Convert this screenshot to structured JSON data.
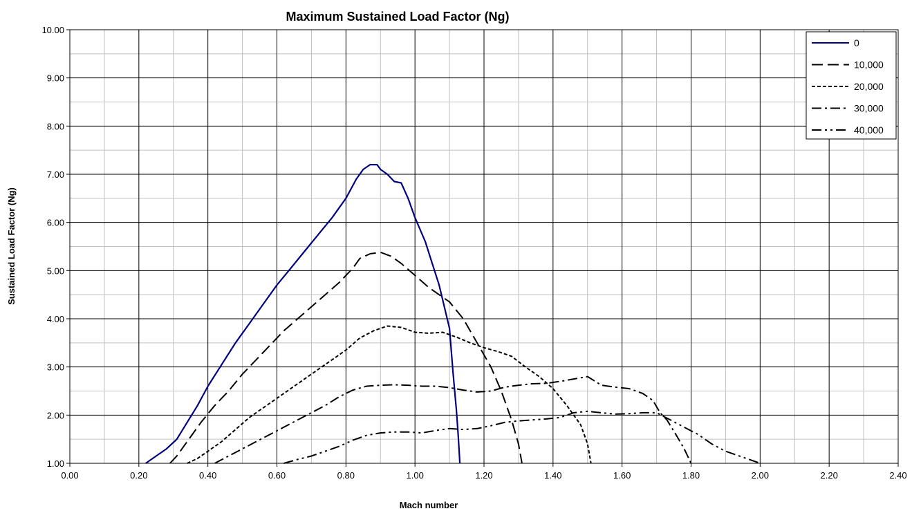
{
  "chart_data": {
    "type": "line",
    "title": "Maximum Sustained Load Factor (Ng)",
    "xlabel": "Mach number",
    "ylabel": "Sustained Load Factor (Ng)",
    "xlim": [
      0,
      2.4
    ],
    "ylim": [
      1,
      10
    ],
    "grid": true,
    "legend_position": "top-right",
    "x_ticks": [
      "0.00",
      "0.20",
      "0.40",
      "0.60",
      "0.80",
      "1.00",
      "1.20",
      "1.40",
      "1.60",
      "1.80",
      "2.00",
      "2.20",
      "2.40"
    ],
    "y_ticks": [
      "1.00",
      "2.00",
      "3.00",
      "4.00",
      "5.00",
      "6.00",
      "7.00",
      "8.00",
      "9.00",
      "10.00"
    ],
    "series": [
      {
        "name": "0",
        "color": "#000080",
        "dash": "solid",
        "points": [
          [
            0.22,
            1.0
          ],
          [
            0.25,
            1.15
          ],
          [
            0.28,
            1.3
          ],
          [
            0.31,
            1.5
          ],
          [
            0.34,
            1.85
          ],
          [
            0.37,
            2.2
          ],
          [
            0.4,
            2.6
          ],
          [
            0.44,
            3.05
          ],
          [
            0.48,
            3.5
          ],
          [
            0.52,
            3.9
          ],
          [
            0.56,
            4.3
          ],
          [
            0.6,
            4.7
          ],
          [
            0.64,
            5.05
          ],
          [
            0.68,
            5.4
          ],
          [
            0.72,
            5.75
          ],
          [
            0.76,
            6.1
          ],
          [
            0.8,
            6.5
          ],
          [
            0.83,
            6.9
          ],
          [
            0.85,
            7.1
          ],
          [
            0.87,
            7.2
          ],
          [
            0.89,
            7.2
          ],
          [
            0.9,
            7.1
          ],
          [
            0.92,
            7.0
          ],
          [
            0.94,
            6.85
          ],
          [
            0.96,
            6.82
          ],
          [
            0.98,
            6.5
          ],
          [
            1.0,
            6.1
          ],
          [
            1.03,
            5.6
          ],
          [
            1.05,
            5.15
          ],
          [
            1.07,
            4.7
          ],
          [
            1.09,
            4.1
          ],
          [
            1.1,
            3.8
          ],
          [
            1.11,
            2.9
          ],
          [
            1.12,
            2.1
          ],
          [
            1.125,
            1.6
          ],
          [
            1.13,
            1.0
          ]
        ]
      },
      {
        "name": "10,000",
        "color": "#000000",
        "dash": "long-dash",
        "points": [
          [
            0.29,
            1.0
          ],
          [
            0.31,
            1.15
          ],
          [
            0.34,
            1.45
          ],
          [
            0.38,
            1.85
          ],
          [
            0.42,
            2.2
          ],
          [
            0.46,
            2.5
          ],
          [
            0.5,
            2.85
          ],
          [
            0.54,
            3.15
          ],
          [
            0.58,
            3.45
          ],
          [
            0.62,
            3.75
          ],
          [
            0.66,
            4.0
          ],
          [
            0.7,
            4.25
          ],
          [
            0.74,
            4.5
          ],
          [
            0.78,
            4.75
          ],
          [
            0.82,
            5.05
          ],
          [
            0.84,
            5.25
          ],
          [
            0.87,
            5.35
          ],
          [
            0.9,
            5.38
          ],
          [
            0.93,
            5.3
          ],
          [
            0.96,
            5.15
          ],
          [
            1.0,
            4.9
          ],
          [
            1.04,
            4.65
          ],
          [
            1.06,
            4.55
          ],
          [
            1.1,
            4.35
          ],
          [
            1.14,
            4.0
          ],
          [
            1.18,
            3.5
          ],
          [
            1.22,
            3.0
          ],
          [
            1.25,
            2.5
          ],
          [
            1.28,
            1.9
          ],
          [
            1.3,
            1.4
          ],
          [
            1.31,
            1.0
          ]
        ]
      },
      {
        "name": "20,000",
        "color": "#000000",
        "dash": "short-dash",
        "points": [
          [
            0.34,
            1.0
          ],
          [
            0.37,
            1.1
          ],
          [
            0.4,
            1.25
          ],
          [
            0.44,
            1.45
          ],
          [
            0.48,
            1.7
          ],
          [
            0.52,
            1.95
          ],
          [
            0.56,
            2.15
          ],
          [
            0.6,
            2.35
          ],
          [
            0.64,
            2.55
          ],
          [
            0.68,
            2.75
          ],
          [
            0.72,
            2.95
          ],
          [
            0.76,
            3.15
          ],
          [
            0.8,
            3.35
          ],
          [
            0.84,
            3.6
          ],
          [
            0.88,
            3.75
          ],
          [
            0.92,
            3.85
          ],
          [
            0.96,
            3.82
          ],
          [
            1.0,
            3.72
          ],
          [
            1.04,
            3.7
          ],
          [
            1.08,
            3.72
          ],
          [
            1.12,
            3.62
          ],
          [
            1.16,
            3.5
          ],
          [
            1.2,
            3.4
          ],
          [
            1.24,
            3.32
          ],
          [
            1.28,
            3.22
          ],
          [
            1.32,
            3.0
          ],
          [
            1.36,
            2.8
          ],
          [
            1.4,
            2.55
          ],
          [
            1.44,
            2.2
          ],
          [
            1.48,
            1.8
          ],
          [
            1.5,
            1.4
          ],
          [
            1.51,
            1.0
          ]
        ]
      },
      {
        "name": "30,000",
        "color": "#000000",
        "dash": "dash-dot",
        "points": [
          [
            0.42,
            1.0
          ],
          [
            0.46,
            1.15
          ],
          [
            0.5,
            1.3
          ],
          [
            0.54,
            1.45
          ],
          [
            0.58,
            1.6
          ],
          [
            0.62,
            1.75
          ],
          [
            0.66,
            1.9
          ],
          [
            0.7,
            2.05
          ],
          [
            0.74,
            2.2
          ],
          [
            0.78,
            2.38
          ],
          [
            0.82,
            2.52
          ],
          [
            0.86,
            2.6
          ],
          [
            0.9,
            2.62
          ],
          [
            0.94,
            2.63
          ],
          [
            0.98,
            2.62
          ],
          [
            1.02,
            2.6
          ],
          [
            1.06,
            2.6
          ],
          [
            1.1,
            2.57
          ],
          [
            1.14,
            2.52
          ],
          [
            1.18,
            2.48
          ],
          [
            1.22,
            2.5
          ],
          [
            1.26,
            2.58
          ],
          [
            1.3,
            2.62
          ],
          [
            1.34,
            2.65
          ],
          [
            1.38,
            2.66
          ],
          [
            1.42,
            2.7
          ],
          [
            1.46,
            2.75
          ],
          [
            1.5,
            2.8
          ],
          [
            1.54,
            2.62
          ],
          [
            1.58,
            2.58
          ],
          [
            1.62,
            2.55
          ],
          [
            1.66,
            2.45
          ],
          [
            1.69,
            2.3
          ],
          [
            1.71,
            2.05
          ],
          [
            1.73,
            1.9
          ],
          [
            1.76,
            1.55
          ],
          [
            1.78,
            1.3
          ],
          [
            1.8,
            1.0
          ]
        ]
      },
      {
        "name": "40,000",
        "color": "#000000",
        "dash": "dash-dot-dot",
        "points": [
          [
            0.62,
            1.0
          ],
          [
            0.66,
            1.08
          ],
          [
            0.7,
            1.15
          ],
          [
            0.74,
            1.25
          ],
          [
            0.78,
            1.35
          ],
          [
            0.82,
            1.48
          ],
          [
            0.86,
            1.58
          ],
          [
            0.9,
            1.63
          ],
          [
            0.94,
            1.65
          ],
          [
            0.98,
            1.65
          ],
          [
            1.02,
            1.63
          ],
          [
            1.06,
            1.68
          ],
          [
            1.1,
            1.72
          ],
          [
            1.14,
            1.7
          ],
          [
            1.18,
            1.72
          ],
          [
            1.22,
            1.78
          ],
          [
            1.26,
            1.85
          ],
          [
            1.3,
            1.88
          ],
          [
            1.34,
            1.9
          ],
          [
            1.38,
            1.92
          ],
          [
            1.42,
            1.95
          ],
          [
            1.46,
            2.05
          ],
          [
            1.5,
            2.08
          ],
          [
            1.54,
            2.05
          ],
          [
            1.58,
            2.02
          ],
          [
            1.62,
            2.03
          ],
          [
            1.66,
            2.05
          ],
          [
            1.7,
            2.05
          ],
          [
            1.74,
            1.9
          ],
          [
            1.78,
            1.75
          ],
          [
            1.82,
            1.6
          ],
          [
            1.86,
            1.4
          ],
          [
            1.9,
            1.25
          ],
          [
            1.94,
            1.15
          ],
          [
            1.98,
            1.05
          ],
          [
            2.0,
            1.0
          ]
        ]
      }
    ]
  }
}
